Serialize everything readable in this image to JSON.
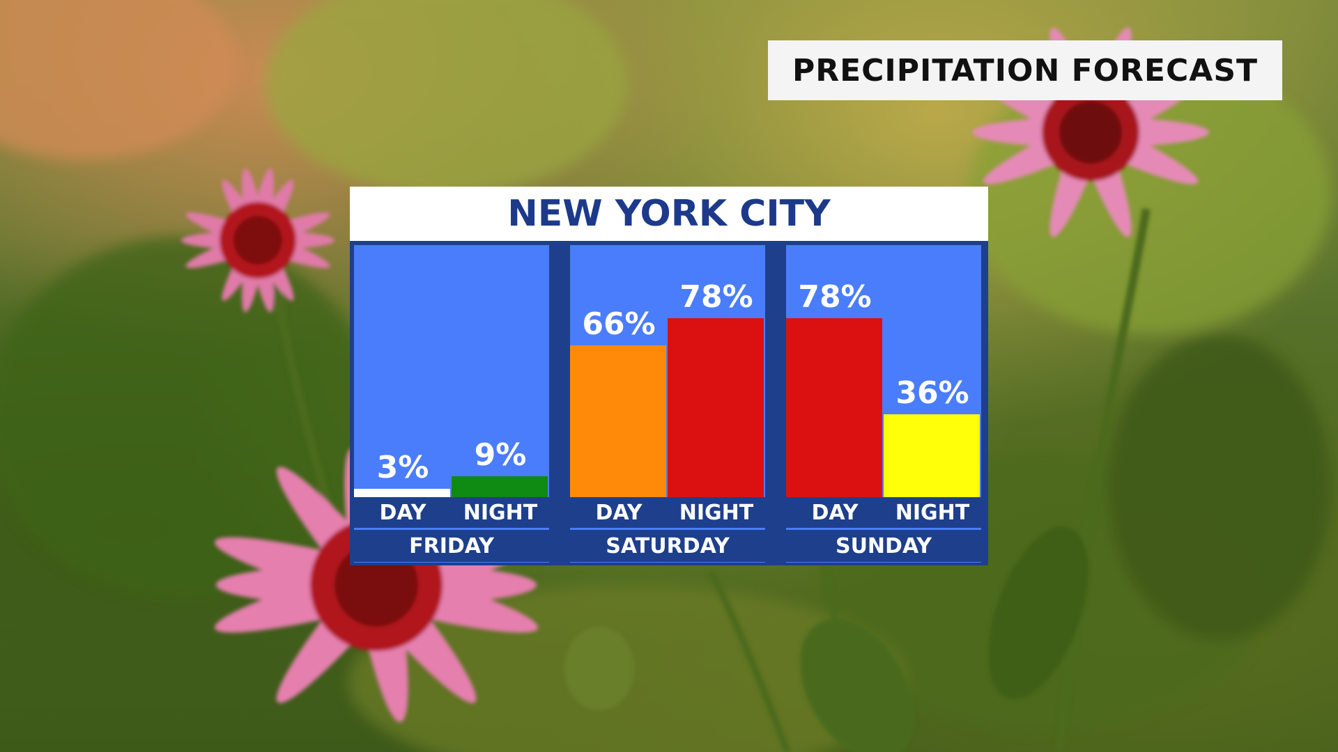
{
  "header": {
    "title": "PRECIPITATION FORECAST"
  },
  "chart_data": {
    "type": "bar",
    "title": "NEW YORK CITY",
    "ylim": [
      0,
      100
    ],
    "days": [
      {
        "name": "FRIDAY",
        "periods": [
          {
            "label": "DAY",
            "value": 3,
            "value_label": "3%",
            "color": "#ffffff"
          },
          {
            "label": "NIGHT",
            "value": 9,
            "value_label": "9%",
            "color": "#0f8a13"
          }
        ]
      },
      {
        "name": "SATURDAY",
        "periods": [
          {
            "label": "DAY",
            "value": 66,
            "value_label": "66%",
            "color": "#ff8a0a"
          },
          {
            "label": "NIGHT",
            "value": 78,
            "value_label": "78%",
            "color": "#db1111"
          }
        ]
      },
      {
        "name": "SUNDAY",
        "periods": [
          {
            "label": "DAY",
            "value": 78,
            "value_label": "78%",
            "color": "#db1111"
          },
          {
            "label": "NIGHT",
            "value": 36,
            "value_label": "36%",
            "color": "#ffff0a"
          }
        ]
      }
    ]
  },
  "colors": {
    "panel": "#4a7dfb",
    "frame": "#1e3f8c",
    "title_text": "#1d3a8a"
  }
}
